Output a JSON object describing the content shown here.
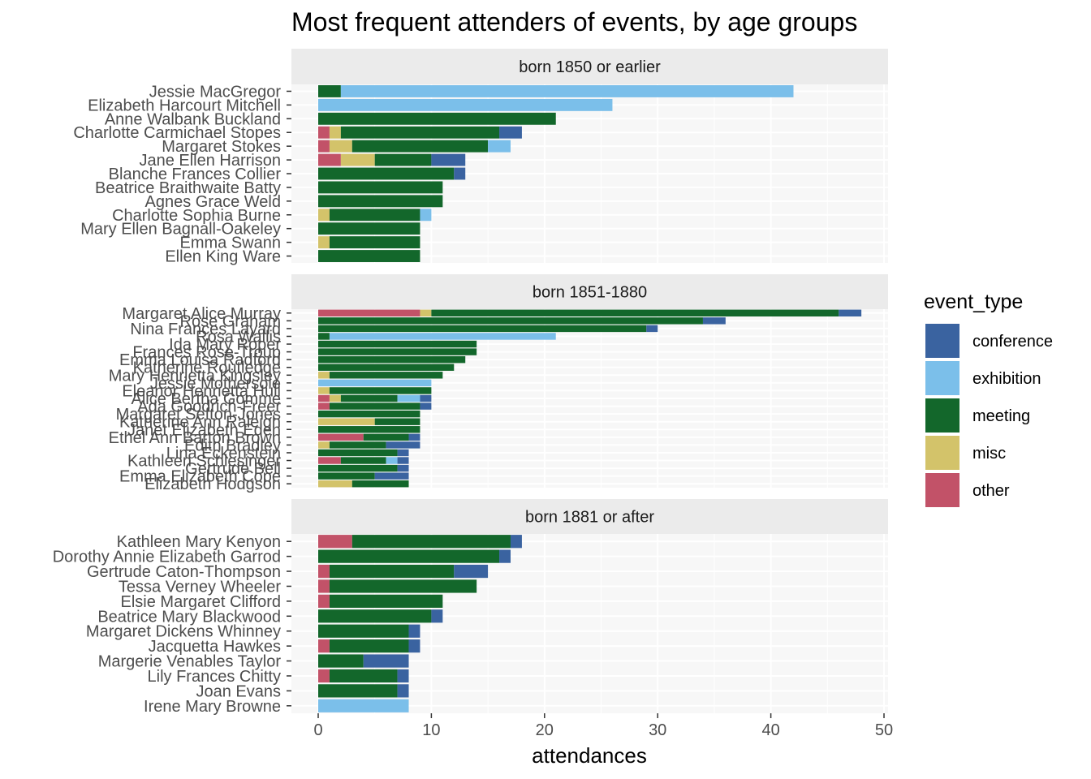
{
  "chart_data": {
    "type": "bar",
    "orientation": "horizontal",
    "stacked": true,
    "title": "Most frequent attenders of events, by age groups",
    "xlabel": "attendances",
    "xlim": [
      -2.5,
      50.2
    ],
    "xticks": [
      0,
      10,
      20,
      30,
      40,
      50
    ],
    "grid": true,
    "legend": {
      "title": "event_type",
      "position": "right"
    },
    "stack_order": [
      "other",
      "misc",
      "meeting",
      "exhibition",
      "conference"
    ],
    "colors": {
      "conference": "#3a63a0",
      "exhibition": "#7bbfea",
      "meeting": "#13672b",
      "misc": "#d3c36a",
      "other": "#c25268"
    },
    "facets": [
      {
        "label": "born 1850 or earlier",
        "rows": [
          {
            "name": "Jessie MacGregor",
            "other": 0,
            "misc": 0,
            "meeting": 2,
            "exhibition": 40,
            "conference": 0
          },
          {
            "name": "Elizabeth Harcourt Mitchell",
            "other": 0,
            "misc": 0,
            "meeting": 0,
            "exhibition": 26,
            "conference": 0
          },
          {
            "name": "Anne Walbank Buckland",
            "other": 0,
            "misc": 0,
            "meeting": 21,
            "exhibition": 0,
            "conference": 0
          },
          {
            "name": "Charlotte Carmichael Stopes",
            "other": 1,
            "misc": 1,
            "meeting": 14,
            "exhibition": 0,
            "conference": 2
          },
          {
            "name": "Margaret Stokes",
            "other": 1,
            "misc": 2,
            "meeting": 12,
            "exhibition": 2,
            "conference": 0
          },
          {
            "name": "Jane Ellen Harrison",
            "other": 2,
            "misc": 3,
            "meeting": 5,
            "exhibition": 0,
            "conference": 3
          },
          {
            "name": "Blanche Frances Collier",
            "other": 0,
            "misc": 0,
            "meeting": 12,
            "exhibition": 0,
            "conference": 1
          },
          {
            "name": "Beatrice Braithwaite Batty",
            "other": 0,
            "misc": 0,
            "meeting": 11,
            "exhibition": 0,
            "conference": 0
          },
          {
            "name": "Agnes Grace Weld",
            "other": 0,
            "misc": 0,
            "meeting": 11,
            "exhibition": 0,
            "conference": 0
          },
          {
            "name": "Charlotte Sophia Burne",
            "other": 0,
            "misc": 1,
            "meeting": 8,
            "exhibition": 1,
            "conference": 0
          },
          {
            "name": "Mary Ellen Bagnall-Oakeley",
            "other": 0,
            "misc": 0,
            "meeting": 9,
            "exhibition": 0,
            "conference": 0
          },
          {
            "name": "Emma Swann",
            "other": 0,
            "misc": 1,
            "meeting": 8,
            "exhibition": 0,
            "conference": 0
          },
          {
            "name": "Ellen King Ware",
            "other": 0,
            "misc": 0,
            "meeting": 9,
            "exhibition": 0,
            "conference": 0
          }
        ]
      },
      {
        "label": "born 1851-1880",
        "rows": [
          {
            "name": "Margaret Alice Murray",
            "other": 9,
            "misc": 1,
            "meeting": 36,
            "exhibition": 0,
            "conference": 2
          },
          {
            "name": "Rose Graham",
            "other": 0,
            "misc": 0,
            "meeting": 34,
            "exhibition": 0,
            "conference": 2
          },
          {
            "name": "Nina Frances Layard",
            "other": 0,
            "misc": 0,
            "meeting": 29,
            "exhibition": 0,
            "conference": 1
          },
          {
            "name": "Rosa Wallis",
            "other": 0,
            "misc": 0,
            "meeting": 1,
            "exhibition": 20,
            "conference": 0
          },
          {
            "name": "Ida Mary Roper",
            "other": 0,
            "misc": 0,
            "meeting": 14,
            "exhibition": 0,
            "conference": 0
          },
          {
            "name": "Frances Rose-Troup",
            "other": 0,
            "misc": 0,
            "meeting": 14,
            "exhibition": 0,
            "conference": 0
          },
          {
            "name": "Emma Louisa Radford",
            "other": 0,
            "misc": 0,
            "meeting": 13,
            "exhibition": 0,
            "conference": 0
          },
          {
            "name": "Katherine Routledge",
            "other": 0,
            "misc": 0,
            "meeting": 12,
            "exhibition": 0,
            "conference": 0
          },
          {
            "name": "Mary Henrietta Kingsley",
            "other": 0,
            "misc": 1,
            "meeting": 10,
            "exhibition": 0,
            "conference": 0
          },
          {
            "name": "Jessie Mothersole",
            "other": 0,
            "misc": 0,
            "meeting": 0,
            "exhibition": 10,
            "conference": 0
          },
          {
            "name": "Eleanor Henrietta Hull",
            "other": 0,
            "misc": 1,
            "meeting": 9,
            "exhibition": 0,
            "conference": 0
          },
          {
            "name": "Alice Bertha Gomme",
            "other": 1,
            "misc": 1,
            "meeting": 5,
            "exhibition": 2,
            "conference": 1
          },
          {
            "name": "Ada Goodrich-Freer",
            "other": 1,
            "misc": 0,
            "meeting": 8,
            "exhibition": 0,
            "conference": 1
          },
          {
            "name": "Margaret Sefton-Jones",
            "other": 0,
            "misc": 0,
            "meeting": 9,
            "exhibition": 0,
            "conference": 0
          },
          {
            "name": "Katherine Ann Raleigh",
            "other": 0,
            "misc": 5,
            "meeting": 4,
            "exhibition": 0,
            "conference": 0
          },
          {
            "name": "Janet Elizabeth Eden",
            "other": 0,
            "misc": 0,
            "meeting": 9,
            "exhibition": 0,
            "conference": 0
          },
          {
            "name": "Ethel Ann Barton Brown",
            "other": 4,
            "misc": 0,
            "meeting": 4,
            "exhibition": 0,
            "conference": 1
          },
          {
            "name": "Edith Bradley",
            "other": 0,
            "misc": 1,
            "meeting": 5,
            "exhibition": 0,
            "conference": 3
          },
          {
            "name": "Lina Eckenstein",
            "other": 0,
            "misc": 0,
            "meeting": 7,
            "exhibition": 0,
            "conference": 1
          },
          {
            "name": "Kathleen Schlesinger",
            "other": 2,
            "misc": 0,
            "meeting": 4,
            "exhibition": 1,
            "conference": 1
          },
          {
            "name": "Gertrude Bell",
            "other": 0,
            "misc": 0,
            "meeting": 7,
            "exhibition": 0,
            "conference": 1
          },
          {
            "name": "Emma Elizabeth Cope",
            "other": 0,
            "misc": 0,
            "meeting": 5,
            "exhibition": 0,
            "conference": 3
          },
          {
            "name": "Elizabeth Hodgson",
            "other": 0,
            "misc": 3,
            "meeting": 5,
            "exhibition": 0,
            "conference": 0
          }
        ]
      },
      {
        "label": "born 1881 or after",
        "rows": [
          {
            "name": "Kathleen Mary Kenyon",
            "other": 3,
            "misc": 0,
            "meeting": 14,
            "exhibition": 0,
            "conference": 1
          },
          {
            "name": "Dorothy Annie Elizabeth Garrod",
            "other": 0,
            "misc": 0,
            "meeting": 16,
            "exhibition": 0,
            "conference": 1
          },
          {
            "name": "Gertrude Caton-Thompson",
            "other": 1,
            "misc": 0,
            "meeting": 11,
            "exhibition": 0,
            "conference": 3
          },
          {
            "name": "Tessa Verney Wheeler",
            "other": 1,
            "misc": 0,
            "meeting": 13,
            "exhibition": 0,
            "conference": 0
          },
          {
            "name": "Elsie Margaret Clifford",
            "other": 1,
            "misc": 0,
            "meeting": 10,
            "exhibition": 0,
            "conference": 0
          },
          {
            "name": "Beatrice Mary Blackwood",
            "other": 0,
            "misc": 0,
            "meeting": 10,
            "exhibition": 0,
            "conference": 1
          },
          {
            "name": "Margaret Dickens Whinney",
            "other": 0,
            "misc": 0,
            "meeting": 8,
            "exhibition": 0,
            "conference": 1
          },
          {
            "name": "Jacquetta Hawkes",
            "other": 1,
            "misc": 0,
            "meeting": 7,
            "exhibition": 0,
            "conference": 1
          },
          {
            "name": "Margerie Venables Taylor",
            "other": 0,
            "misc": 0,
            "meeting": 4,
            "exhibition": 0,
            "conference": 4
          },
          {
            "name": "Lily Frances Chitty",
            "other": 1,
            "misc": 0,
            "meeting": 6,
            "exhibition": 0,
            "conference": 1
          },
          {
            "name": "Joan Evans",
            "other": 0,
            "misc": 0,
            "meeting": 7,
            "exhibition": 0,
            "conference": 1
          },
          {
            "name": "Irene Mary Browne",
            "other": 0,
            "misc": 0,
            "meeting": 0,
            "exhibition": 8,
            "conference": 0
          }
        ]
      }
    ],
    "legend_entries": [
      "conference",
      "exhibition",
      "meeting",
      "misc",
      "other"
    ]
  }
}
